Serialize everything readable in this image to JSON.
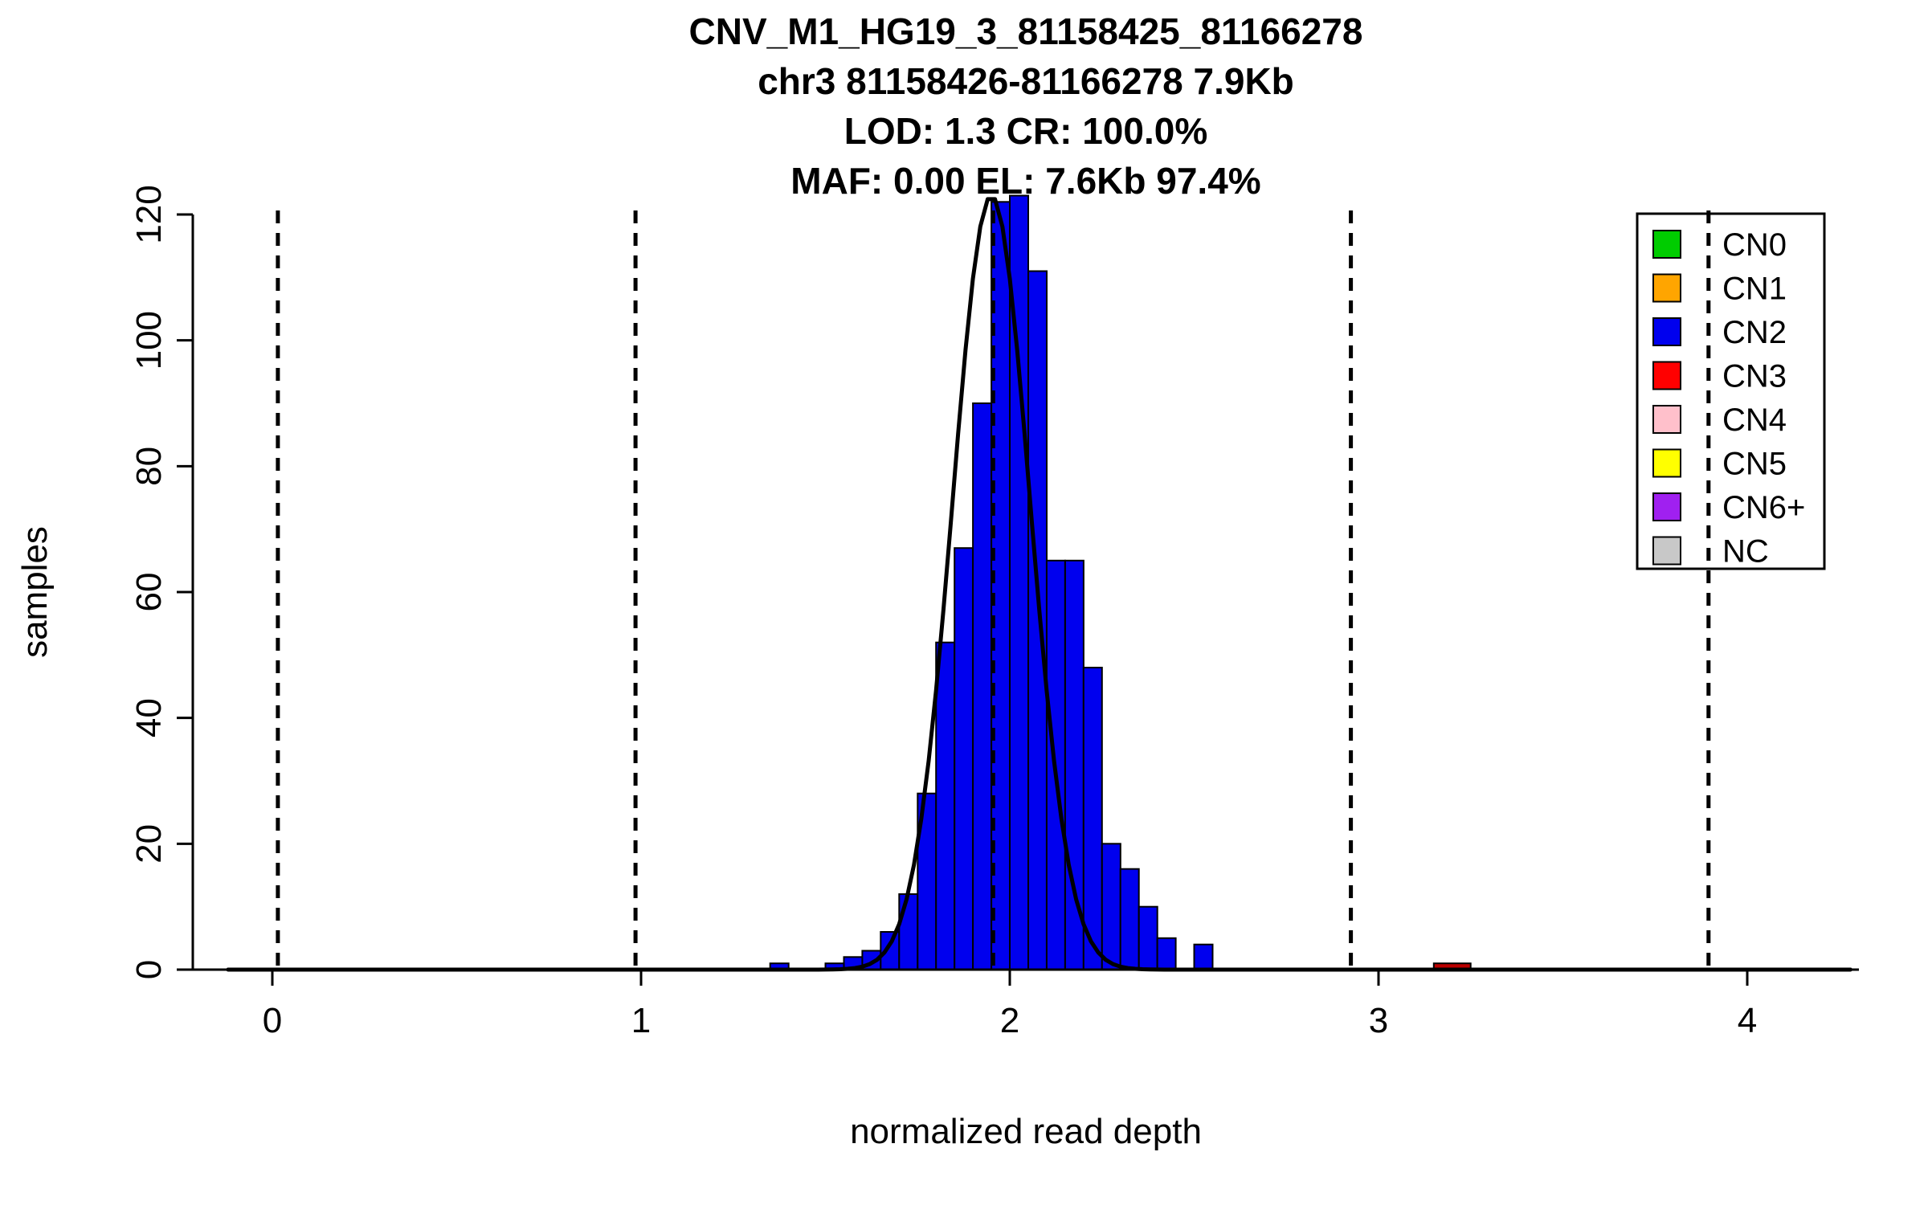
{
  "page": {
    "background": "#FFFFFF"
  },
  "chart_data": {
    "type": "bar",
    "subtype": "histogram-with-fit-curve",
    "title_lines": [
      "CNV_M1_HG19_3_81158425_81166278",
      "chr3 81158426-81166278 7.9Kb",
      "LOD: 1.3 CR: 100.0%",
      "MAF: 0.00 EL: 7.6Kb 97.4%"
    ],
    "xlabel": "normalized read depth",
    "ylabel": "samples",
    "xticks": [
      "0",
      "1",
      "2",
      "3",
      "4"
    ],
    "yticks": [
      "0",
      "20",
      "40",
      "60",
      "80",
      "100",
      "120"
    ],
    "xlim": [
      -0.22,
      4.32
    ],
    "ylim": [
      0,
      123
    ],
    "grid": "off",
    "histogram": {
      "bin_width": 0.05,
      "series": [
        {
          "name": "CN2",
          "color": "#0000EE",
          "bin_start": 1.35,
          "bin_width": 0.05,
          "counts": [
            1,
            0,
            0,
            1,
            2,
            3,
            6,
            12,
            28,
            52,
            67,
            90,
            122,
            123,
            111,
            65,
            65,
            48,
            20,
            16,
            10,
            5,
            0,
            4
          ]
        },
        {
          "name": "CN3",
          "color": "#BB0000",
          "bin_start": 3.15,
          "bin_width": 0.1,
          "counts": [
            1
          ]
        }
      ]
    },
    "fit_curve": {
      "color": "#000000",
      "mean": 1.95,
      "sd": 0.105,
      "amplitude": 123
    },
    "cn_guide_lines": {
      "style": "dashed",
      "color": "#000000",
      "x_values": [
        0.015,
        0.985,
        1.955,
        2.925,
        3.895
      ]
    },
    "legend": {
      "position": "top-right",
      "entries": [
        {
          "label": "CN0",
          "color": "#00CC00"
        },
        {
          "label": "CN1",
          "color": "#FFA500"
        },
        {
          "label": "CN2",
          "color": "#0000EE"
        },
        {
          "label": "CN3",
          "color": "#FF0000"
        },
        {
          "label": "CN4",
          "color": "#FFC0CB"
        },
        {
          "label": "CN5",
          "color": "#FFFF00"
        },
        {
          "label": "CN6+",
          "color": "#A020F0"
        },
        {
          "label": "NC",
          "color": "#C8C8C8"
        }
      ]
    }
  }
}
